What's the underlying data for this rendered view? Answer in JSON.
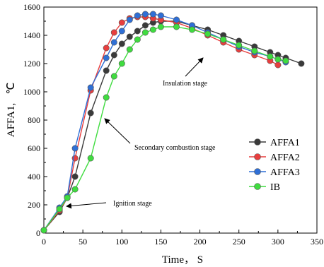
{
  "chart_data": {
    "type": "line",
    "xlabel": "Time， S",
    "ylabel": "AFFA1,",
    "ylabel_unit": "℃",
    "xlim": [
      0,
      350
    ],
    "ylim": [
      0,
      1600
    ],
    "xticks": [
      0,
      50,
      100,
      150,
      200,
      250,
      300,
      350
    ],
    "yticks": [
      0,
      200,
      400,
      600,
      800,
      1000,
      1200,
      1400,
      1600
    ],
    "grid": false,
    "legend_position": "right",
    "series": [
      {
        "name": "AFFA1",
        "color": "#3a3a3a",
        "x": [
          0,
          20,
          30,
          40,
          60,
          80,
          90,
          100,
          110,
          120,
          130,
          140,
          150,
          170,
          190,
          210,
          230,
          250,
          270,
          290,
          300,
          310,
          330
        ],
        "y": [
          20,
          150,
          250,
          400,
          850,
          1150,
          1260,
          1340,
          1390,
          1430,
          1470,
          1490,
          1500,
          1500,
          1470,
          1440,
          1400,
          1360,
          1320,
          1280,
          1260,
          1240,
          1200
        ]
      },
      {
        "name": "AFFA2",
        "color": "#e83e3e",
        "x": [
          0,
          20,
          30,
          40,
          60,
          80,
          90,
          100,
          110,
          120,
          130,
          140,
          150,
          170,
          190,
          210,
          230,
          250,
          270,
          290,
          300
        ],
        "y": [
          20,
          160,
          250,
          530,
          1010,
          1310,
          1420,
          1490,
          1520,
          1530,
          1530,
          1520,
          1510,
          1490,
          1450,
          1400,
          1350,
          1300,
          1260,
          1220,
          1190
        ]
      },
      {
        "name": "AFFA3",
        "color": "#2f6fd6",
        "x": [
          0,
          20,
          30,
          40,
          60,
          80,
          90,
          100,
          110,
          120,
          130,
          140,
          150,
          170,
          190,
          210,
          230,
          250,
          270,
          290,
          300,
          310
        ],
        "y": [
          20,
          180,
          260,
          600,
          1030,
          1240,
          1350,
          1430,
          1510,
          1540,
          1550,
          1550,
          1540,
          1510,
          1470,
          1420,
          1370,
          1320,
          1280,
          1250,
          1230,
          1210
        ]
      },
      {
        "name": "IB",
        "color": "#3fdc3f",
        "x": [
          0,
          20,
          30,
          40,
          60,
          80,
          90,
          100,
          110,
          120,
          130,
          140,
          150,
          170,
          190,
          210,
          230,
          250,
          270,
          290,
          300,
          310
        ],
        "y": [
          20,
          170,
          250,
          310,
          530,
          960,
          1110,
          1200,
          1300,
          1370,
          1420,
          1440,
          1460,
          1460,
          1440,
          1410,
          1370,
          1330,
          1290,
          1250,
          1230,
          1220
        ]
      }
    ],
    "annotations": [
      {
        "text": "Ignition stage",
        "point_to": [
          40,
          200
        ]
      },
      {
        "text": "Secondary combustion stage",
        "point_to": [
          88,
          850
        ]
      },
      {
        "text": "Insulation stage",
        "point_to": [
          205,
          1350
        ]
      }
    ]
  }
}
